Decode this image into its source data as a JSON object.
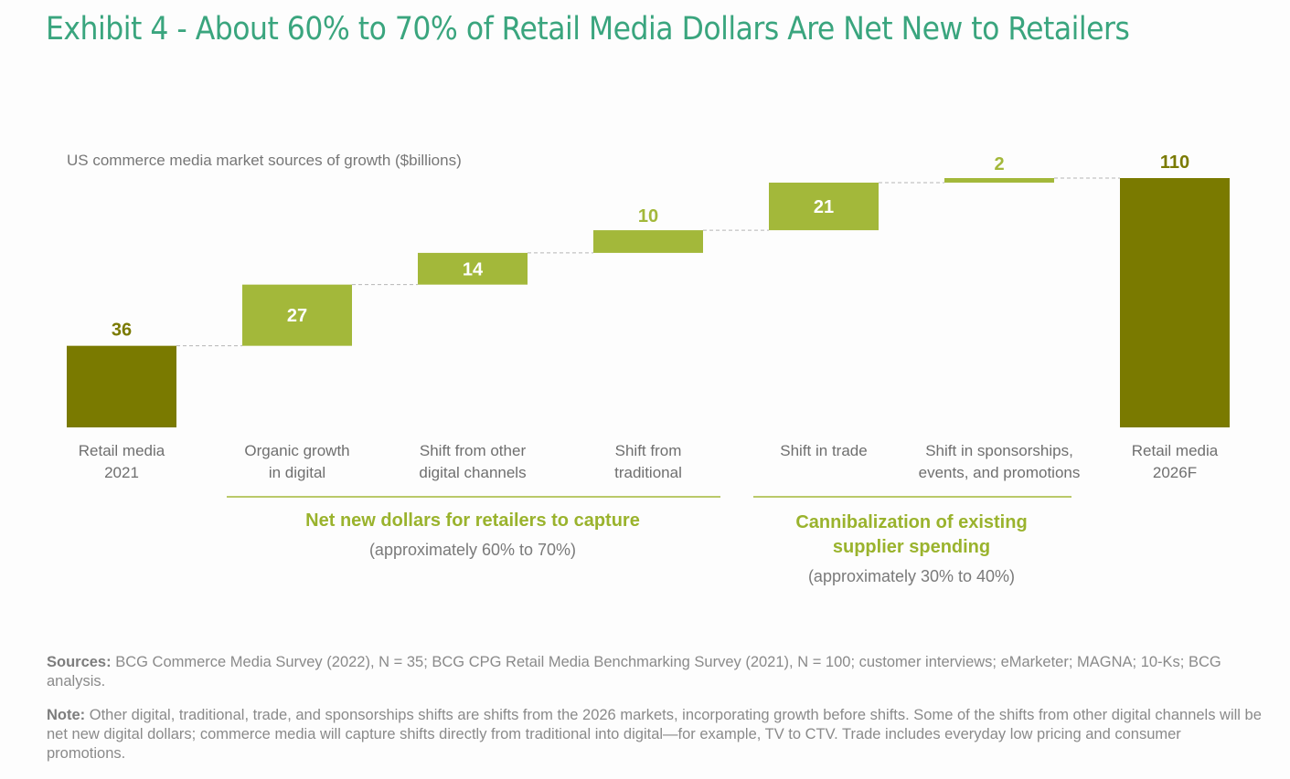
{
  "title": "Exhibit 4 - About 60% to 70% of Retail Media Dollars Are Net New to Retailers",
  "chart_data": {
    "type": "waterfall",
    "subtitle": "US commerce media market sources of growth ($billions)",
    "categories": [
      [
        "Retail media",
        "2021"
      ],
      [
        "Organic growth",
        "in digital"
      ],
      [
        "Shift from other",
        "digital channels"
      ],
      [
        "Shift from",
        "traditional"
      ],
      [
        "Shift in trade"
      ],
      [
        "Shift in sponsorships,",
        "events, and promotions"
      ],
      [
        "Retail media",
        "2026F"
      ]
    ],
    "values": [
      36,
      27,
      14,
      10,
      21,
      2,
      110
    ],
    "bar_kinds": [
      "total",
      "delta",
      "delta",
      "delta",
      "delta",
      "delta",
      "total"
    ],
    "value_labels": [
      "36",
      "27",
      "14",
      "10",
      "21",
      "2",
      "110"
    ],
    "colors": {
      "total": "#7a7a00",
      "delta": "#a3b83a",
      "connector": "#b5b5b5"
    },
    "ylim": [
      0,
      110
    ],
    "groups": [
      {
        "label": "Net new dollars for retailers to capture",
        "sublabel": "(approximately 60% to 70%)",
        "span": [
          1,
          3
        ]
      },
      {
        "label_lines": [
          "Cannibalization of existing",
          "supplier spending"
        ],
        "sublabel": "(approximately 30% to 40%)",
        "span": [
          4,
          5
        ]
      }
    ]
  },
  "footer": {
    "sources_label": "Sources:",
    "sources": "BCG Commerce Media Survey (2022), N = 35; BCG CPG Retail Media Benchmarking Survey (2021), N = 100; customer interviews; eMarketer; MAGNA; 10-Ks; BCG analysis.",
    "note_label": "Note:",
    "note": "Other digital, traditional, trade, and sponsorships shifts are shifts from the 2026 markets, incorporating growth before shifts. Some of the shifts from other digital channels will be net new digital dollars; commerce media will capture shifts directly from traditional into digital—for example, TV to CTV. Trade includes everyday low pricing and consumer promotions."
  }
}
